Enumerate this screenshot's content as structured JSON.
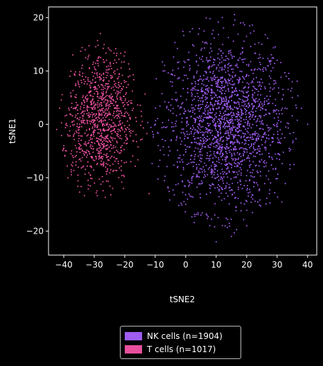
{
  "chart_data": {
    "type": "scatter",
    "title": "",
    "xlabel": "tSNE2",
    "ylabel": "tSNE1",
    "xlim": [
      -45,
      43
    ],
    "ylim": [
      -24.5,
      22
    ],
    "xticks": [
      -40,
      -30,
      -20,
      -10,
      0,
      10,
      20,
      30,
      40
    ],
    "xtick_labels": [
      "−40",
      "−30",
      "−20",
      "−10",
      "0",
      "10",
      "20",
      "30",
      "40"
    ],
    "yticks": [
      -20,
      -10,
      0,
      10,
      20
    ],
    "ytick_labels": [
      "−20",
      "−10",
      "0",
      "10",
      "20"
    ],
    "grid": false,
    "legend_position": "bottom-center",
    "series": [
      {
        "name": "NK cells (n=1904)",
        "color": "#9f5cf0",
        "n": 1904,
        "cluster": {
          "center": [
            13,
            0
          ],
          "x_range": [
            -12,
            40
          ],
          "y_range": [
            -22,
            20
          ]
        },
        "x": [
          10,
          15,
          20,
          5,
          0,
          25,
          30,
          35,
          12,
          18,
          -5,
          -10,
          8,
          22,
          28,
          38,
          40,
          11,
          14,
          17,
          24,
          26,
          3,
          6,
          9,
          21,
          31,
          33
        ],
        "y": [
          -22,
          -21,
          -19,
          -17,
          -15,
          15,
          12,
          5,
          20,
          19,
          8,
          0,
          -12,
          -14,
          10,
          3,
          0,
          1,
          -2,
          3,
          -5,
          7,
          2,
          -3,
          6,
          -8,
          -1,
          9
        ]
      },
      {
        "name": "T cells (n=1017)",
        "color": "#e8509e",
        "n": 1017,
        "cluster": {
          "center": [
            -28,
            1
          ],
          "x_range": [
            -42,
            -11
          ],
          "y_range": [
            -13,
            17.5
          ]
        },
        "x": [
          -28,
          -25,
          -33,
          -38,
          -40,
          -22,
          -18,
          -12,
          -30,
          -27,
          -24,
          -35,
          -20,
          -26,
          -31
        ],
        "y": [
          17,
          14,
          8,
          9,
          -4,
          -10,
          -7,
          -13,
          0,
          3,
          -12,
          -1,
          2,
          12,
          -6
        ]
      }
    ]
  }
}
